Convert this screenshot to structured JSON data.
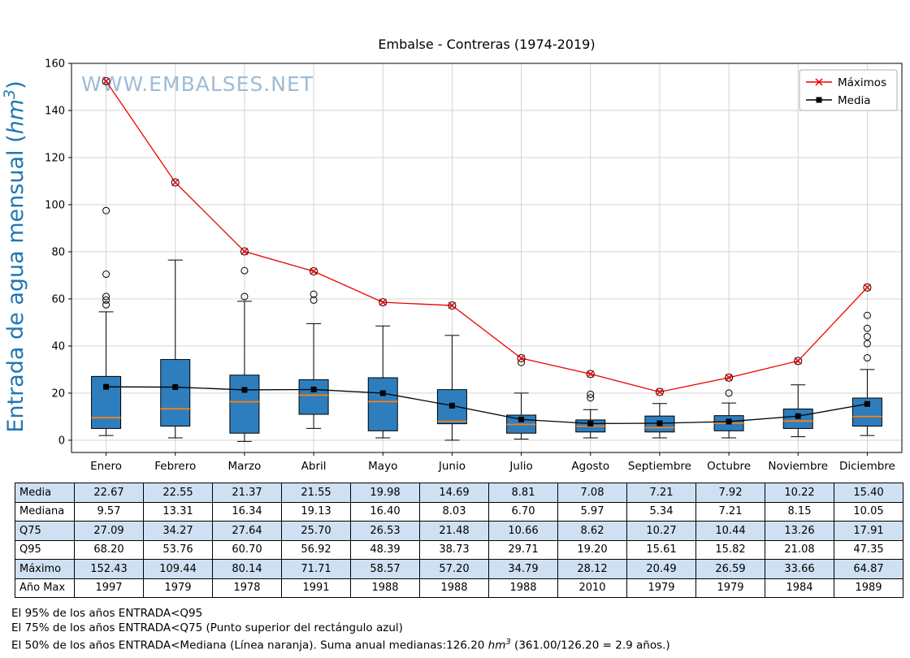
{
  "title": "Embalse - Contreras (1974-2019)",
  "watermark": "WWW.EMBALSES.NET",
  "colors": {
    "box_fill": "#2e7ebd",
    "median": "#ff7f0e",
    "max_line": "#f00000",
    "media_line": "#000000",
    "grid": "#cfcfcf",
    "watermark": "#9cbcd8",
    "ylabel": "#1f77b4",
    "table_alt": "#cfe0f3",
    "legend_border": "#b0b0b0"
  },
  "chart_data": {
    "type": "boxplot",
    "title": "Embalse - Contreras (1974-2019)",
    "ylabel": {
      "prefix": "Entrada de agua mensual (",
      "unit": "hm",
      "sup": "3",
      "suffix": ")"
    },
    "ylim": [
      -5.2,
      160
    ],
    "yticks": [
      0,
      20,
      40,
      60,
      80,
      100,
      120,
      140,
      160
    ],
    "grid": true,
    "legend_position": "upper-right",
    "categories": [
      "Enero",
      "Febrero",
      "Marzo",
      "Abril",
      "Mayo",
      "Junio",
      "Julio",
      "Agosto",
      "Septiembre",
      "Octubre",
      "Noviembre",
      "Diciembre"
    ],
    "legend": [
      {
        "label": "Máximos",
        "marker": "x"
      },
      {
        "label": "Media",
        "marker": "square"
      }
    ],
    "series": [
      {
        "name": "Media",
        "values": [
          22.67,
          22.55,
          21.37,
          21.55,
          19.98,
          14.69,
          8.81,
          7.08,
          7.21,
          7.92,
          10.22,
          15.4
        ]
      },
      {
        "name": "Mediana",
        "values": [
          9.57,
          13.31,
          16.34,
          19.13,
          16.4,
          8.03,
          6.7,
          5.97,
          5.34,
          7.21,
          8.15,
          10.05
        ]
      },
      {
        "name": "Q75",
        "values": [
          27.09,
          34.27,
          27.64,
          25.7,
          26.53,
          21.48,
          10.66,
          8.62,
          10.27,
          10.44,
          13.26,
          17.91
        ]
      },
      {
        "name": "Q95",
        "values": [
          68.2,
          53.76,
          60.7,
          56.92,
          48.39,
          38.73,
          29.71,
          19.2,
          15.61,
          15.82,
          21.08,
          47.35
        ]
      },
      {
        "name": "Máximo",
        "values": [
          152.43,
          109.44,
          80.14,
          71.71,
          58.57,
          57.2,
          34.79,
          28.12,
          20.49,
          26.59,
          33.66,
          64.87
        ]
      },
      {
        "name": "Año Max",
        "values": [
          1997,
          1979,
          1978,
          1991,
          1988,
          1988,
          1988,
          2010,
          1979,
          1979,
          1984,
          1989
        ]
      }
    ],
    "box_stats": [
      {
        "low": 2,
        "q1": 5,
        "high": 54.5,
        "outliers": [
          57.5,
          59.5,
          61,
          70.5,
          97.5
        ]
      },
      {
        "low": 1,
        "q1": 6,
        "high": 76.5,
        "outliers": []
      },
      {
        "low": -0.5,
        "q1": 3,
        "high": 59,
        "outliers": [
          61,
          72
        ]
      },
      {
        "low": 5,
        "q1": 11,
        "high": 49.5,
        "outliers": [
          59.5,
          62
        ]
      },
      {
        "low": 1,
        "q1": 4,
        "high": 48.5,
        "outliers": []
      },
      {
        "low": 0,
        "q1": 7,
        "high": 44.5,
        "outliers": []
      },
      {
        "low": 0.5,
        "q1": 3,
        "high": 20,
        "outliers": [
          33
        ]
      },
      {
        "low": 1,
        "q1": 3.5,
        "high": 13,
        "outliers": [
          18,
          19.5
        ]
      },
      {
        "low": 1,
        "q1": 3.5,
        "high": 15.6,
        "outliers": []
      },
      {
        "low": 1,
        "q1": 4,
        "high": 15.8,
        "outliers": [
          20
        ]
      },
      {
        "low": 1.5,
        "q1": 5,
        "high": 23.5,
        "outliers": []
      },
      {
        "low": 2,
        "q1": 6,
        "high": 30,
        "outliers": [
          35,
          41,
          44,
          47.5,
          53
        ]
      }
    ]
  },
  "table": {
    "row_labels": [
      "Media",
      "Mediana",
      "Q75",
      "Q95",
      "Máximo",
      "Año Max"
    ]
  },
  "footnotes": {
    "line1": "El 95% de los años ENTRADA<Q95",
    "line2": "El 75% de los años ENTRADA<Q75 (Punto superior del rectángulo azul)",
    "line3_prefix": "El 50% de los años ENTRADA<Mediana (Línea naranja). Suma anual medianas:126.20 ",
    "line3_unit": "hm",
    "line3_sup": "3",
    "line3_suffix": " (361.00/126.20 = 2.9 años.)"
  }
}
